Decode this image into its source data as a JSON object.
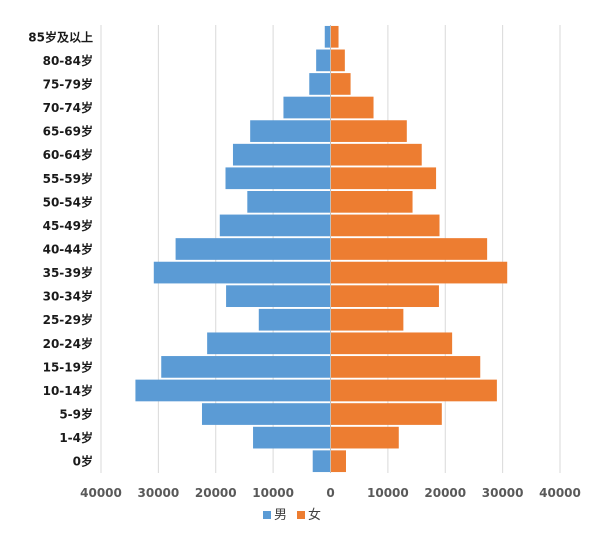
{
  "chart_data": {
    "type": "bar",
    "orientation": "horizontal",
    "categories": [
      "85岁及以上",
      "80-84岁",
      "75-79岁",
      "70-74岁",
      "65-69岁",
      "60-64岁",
      "55-59岁",
      "50-54岁",
      "45-49岁",
      "40-44岁",
      "35-39岁",
      "30-34岁",
      "25-29岁",
      "20-24岁",
      "15-19岁",
      "10-14岁",
      "5-9岁",
      "1-4岁",
      "0岁"
    ],
    "series": [
      {
        "name": "男",
        "color": "#5b9bd5",
        "values": [
          1000,
          2500,
          3700,
          8200,
          14000,
          17000,
          18300,
          14500,
          19300,
          27000,
          30800,
          18200,
          12500,
          21500,
          29500,
          34000,
          22400,
          13500,
          3100
        ]
      },
      {
        "name": "女",
        "color": "#ed7d31",
        "values": [
          1400,
          2500,
          3500,
          7500,
          13300,
          15900,
          18400,
          14300,
          19000,
          27300,
          30800,
          18900,
          12700,
          21200,
          26100,
          29000,
          19400,
          11900,
          2700
        ]
      }
    ],
    "xlim": [
      -40000,
      40000
    ],
    "x_ticks": [
      {
        "value": -40000,
        "label": "40000"
      },
      {
        "value": -30000,
        "label": "30000"
      },
      {
        "value": -20000,
        "label": "20000"
      },
      {
        "value": -10000,
        "label": "10000"
      },
      {
        "value": 0,
        "label": "0"
      },
      {
        "value": 10000,
        "label": "10000"
      },
      {
        "value": 20000,
        "label": "20000"
      },
      {
        "value": 30000,
        "label": "30000"
      },
      {
        "value": 40000,
        "label": "40000"
      }
    ],
    "grid": true,
    "legend_position": "bottom"
  }
}
